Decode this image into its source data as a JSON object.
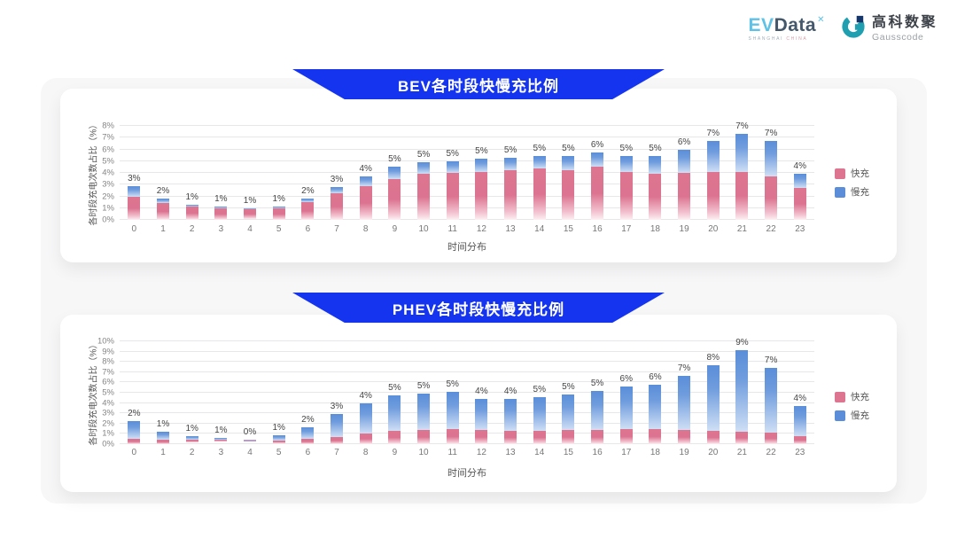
{
  "logo": {
    "evdata": {
      "ev": "EV",
      "data": "Data",
      "sup": "✕",
      "sub_left": "SHANGHAI",
      "sub_right": "CHINA"
    },
    "gausscode": {
      "cn": "高科数聚",
      "en": "Gausscode"
    }
  },
  "colors": {
    "banner_blue": "#1534f0",
    "fast_pink": "#dd7490",
    "slow_blue": "#5b8dd8",
    "panel_bg": "#f7f7f8"
  },
  "chart_data": [
    {
      "type": "bar",
      "stacked": true,
      "title": "BEV各时段快慢充比例",
      "xlabel": "时间分布",
      "ylabel": "各时段充电次数占比（%）",
      "ylim": [
        0,
        8
      ],
      "ytick_step": 1,
      "grid": true,
      "legend_position": "right",
      "categories": [
        "0",
        "1",
        "2",
        "3",
        "4",
        "5",
        "6",
        "7",
        "8",
        "9",
        "10",
        "11",
        "12",
        "13",
        "14",
        "15",
        "16",
        "17",
        "18",
        "19",
        "20",
        "21",
        "22",
        "23"
      ],
      "yticks": [
        "8%",
        "7%",
        "6%",
        "5%",
        "4%",
        "3%",
        "2%",
        "1%",
        "0%"
      ],
      "series": [
        {
          "name": "快充",
          "color": "#dd7490",
          "values": [
            1.95,
            1.45,
            1.1,
            0.95,
            0.88,
            1.0,
            1.5,
            2.3,
            2.9,
            3.5,
            3.9,
            4.0,
            4.1,
            4.2,
            4.35,
            4.25,
            4.5,
            4.05,
            3.95,
            4.0,
            4.1,
            4.1,
            3.7,
            2.7
          ]
        },
        {
          "name": "慢充",
          "color": "#5b8dd8",
          "values": [
            0.95,
            0.4,
            0.2,
            0.15,
            0.07,
            0.15,
            0.3,
            0.5,
            0.8,
            1.0,
            1.0,
            1.0,
            1.1,
            1.1,
            1.05,
            1.15,
            1.2,
            1.35,
            1.45,
            2.0,
            2.6,
            3.2,
            3.0,
            1.2
          ]
        }
      ],
      "total_labels": [
        "3%",
        "2%",
        "1%",
        "1%",
        "1%",
        "1%",
        "2%",
        "3%",
        "4%",
        "5%",
        "5%",
        "5%",
        "5%",
        "5%",
        "5%",
        "5%",
        "6%",
        "5%",
        "5%",
        "6%",
        "7%",
        "7%",
        "7%",
        "4%"
      ]
    },
    {
      "type": "bar",
      "stacked": true,
      "title": "PHEV各时段快慢充比例",
      "xlabel": "时间分布",
      "ylabel": "各时段充电次数占比（%）",
      "ylim": [
        0,
        10
      ],
      "ytick_step": 1,
      "grid": true,
      "legend_position": "right",
      "categories": [
        "0",
        "1",
        "2",
        "3",
        "4",
        "5",
        "6",
        "7",
        "8",
        "9",
        "10",
        "11",
        "12",
        "13",
        "14",
        "15",
        "16",
        "17",
        "18",
        "19",
        "20",
        "21",
        "22",
        "23"
      ],
      "yticks": [
        "10%",
        "9%",
        "8%",
        "7%",
        "6%",
        "5%",
        "4%",
        "3%",
        "2%",
        "1%",
        "0%"
      ],
      "series": [
        {
          "name": "快充",
          "color": "#dd7490",
          "values": [
            0.5,
            0.4,
            0.35,
            0.3,
            0.2,
            0.3,
            0.5,
            0.7,
            1.0,
            1.3,
            1.4,
            1.5,
            1.4,
            1.3,
            1.3,
            1.4,
            1.4,
            1.5,
            1.5,
            1.4,
            1.3,
            1.2,
            1.1,
            0.8
          ]
        },
        {
          "name": "慢充",
          "color": "#5b8dd8",
          "values": [
            1.7,
            0.8,
            0.45,
            0.3,
            0.25,
            0.55,
            1.1,
            2.2,
            3.0,
            3.4,
            3.5,
            3.6,
            3.0,
            3.1,
            3.3,
            3.4,
            3.8,
            4.1,
            4.3,
            5.2,
            6.4,
            7.9,
            6.3,
            2.9
          ]
        }
      ],
      "total_labels": [
        "2%",
        "1%",
        "1%",
        "1%",
        "0%",
        "1%",
        "2%",
        "3%",
        "4%",
        "5%",
        "5%",
        "5%",
        "4%",
        "4%",
        "5%",
        "5%",
        "5%",
        "6%",
        "6%",
        "7%",
        "8%",
        "9%",
        "7%",
        "4%"
      ]
    }
  ]
}
